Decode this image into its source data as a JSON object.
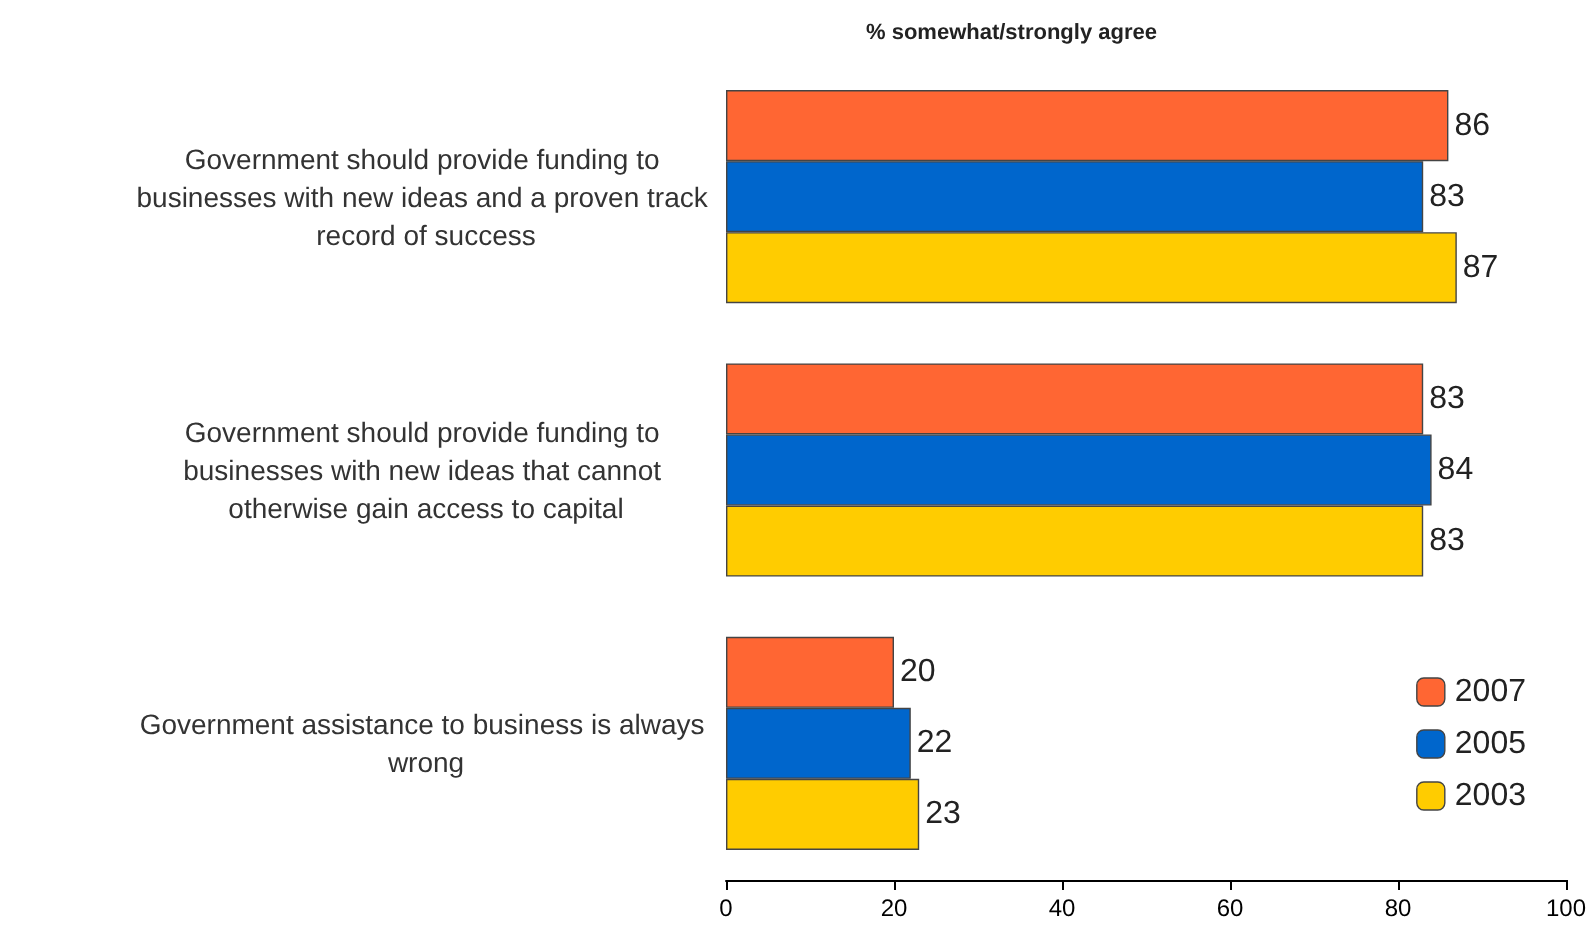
{
  "chart_data": {
    "type": "bar",
    "orientation": "horizontal",
    "title": "% somewhat/strongly agree",
    "categories": [
      "Government should provide funding to businesses with new ideas and a proven track record of success",
      "Government should provide funding to businesses with new ideas that cannot otherwise gain access to capital",
      "Government assistance to business is always wrong"
    ],
    "series": [
      {
        "name": "2007",
        "color": "#ff6633",
        "values": [
          86,
          83,
          20
        ]
      },
      {
        "name": "2005",
        "color": "#0066cc",
        "values": [
          83,
          84,
          22
        ]
      },
      {
        "name": "2003",
        "color": "#ffcc00",
        "values": [
          87,
          83,
          23
        ]
      }
    ],
    "xlim": [
      0,
      100
    ],
    "xticks": [
      0,
      20,
      40,
      60,
      80,
      100
    ],
    "grid": false,
    "legend": "bottom right",
    "data_labels": true
  }
}
